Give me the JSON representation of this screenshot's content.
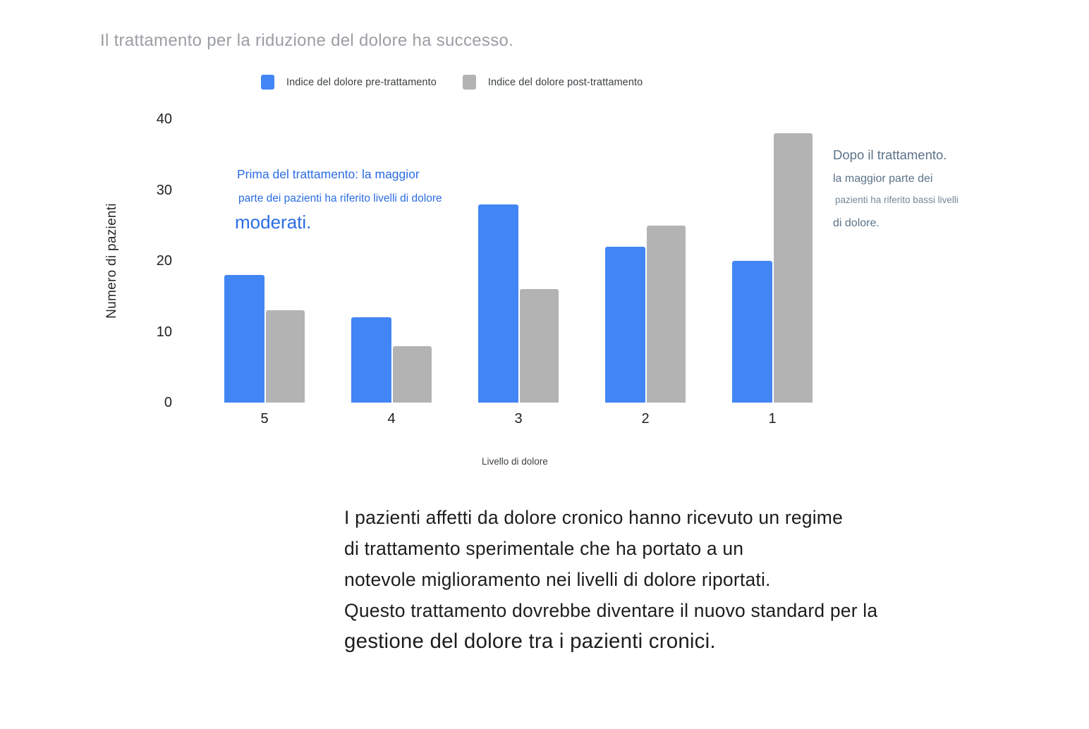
{
  "title": "Il trattamento per la riduzione del dolore ha successo.",
  "legend": {
    "pre": {
      "label": "Indice del dolore pre-trattamento",
      "color": "#4285F4"
    },
    "post": {
      "label": "Indice del dolore post-trattamento",
      "color": "#B3B3B3"
    }
  },
  "chart_data": {
    "type": "bar",
    "categories": [
      "5",
      "4",
      "3",
      "2",
      "1"
    ],
    "series": [
      {
        "name": "Indice del dolore pre-trattamento",
        "color": "#4285F4",
        "values": [
          18,
          12,
          28,
          22,
          20
        ]
      },
      {
        "name": "Indice del dolore post-trattamento",
        "color": "#B3B3B3",
        "values": [
          13,
          8,
          16,
          25,
          38
        ]
      }
    ],
    "title": "Il trattamento per la riduzione del dolore ha successo.",
    "xlabel": "Livello di dolore",
    "ylabel": "Numero di pazienti",
    "ylim": [
      0,
      40
    ],
    "yticks": [
      0,
      10,
      20,
      30,
      40
    ],
    "grid": false,
    "legend_position": "top"
  },
  "annotations": {
    "pre": {
      "color": "#2B6CE4",
      "lines": [
        "Prima del trattamento: la maggior",
        "parte dei pazienti ha riferito livelli di dolore",
        "moderati."
      ]
    },
    "post": {
      "color": "#5B7389",
      "lines": [
        "Dopo il trattamento.",
        "la maggior parte dei",
        "pazienti ha riferito bassi livelli",
        "di dolore."
      ]
    }
  },
  "body_text": {
    "lines": [
      "I pazienti affetti da dolore cronico hanno ricevuto un regime",
      "di trattamento sperimentale che ha portato a un",
      "notevole miglioramento nei livelli di dolore riportati.",
      "Questo trattamento dovrebbe diventare il nuovo standard per la",
      "gestione del dolore tra i pazienti cronici."
    ]
  }
}
